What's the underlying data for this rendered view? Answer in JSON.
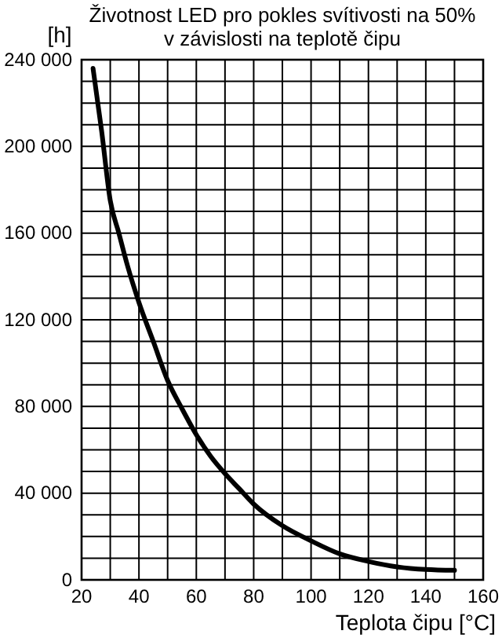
{
  "chart_data": {
    "type": "line",
    "title": "Životnost LED pro pokles svítivosti na 50%",
    "subtitle": "v závislosti na teplotě čipu",
    "ylabel": "[h]",
    "xlabel": "Teplota čipu  [°C]",
    "series": [
      {
        "color": "#000000",
        "x": [
          24,
          27,
          30,
          33,
          36,
          40,
          45,
          50,
          55,
          60,
          65,
          70,
          75,
          80,
          90,
          100,
          110,
          120,
          130,
          140,
          150
        ],
        "values": [
          236000,
          207000,
          175000,
          160000,
          145000,
          128000,
          110000,
          92000,
          79000,
          67000,
          57000,
          49000,
          42000,
          35000,
          25000,
          18000,
          12000,
          8500,
          6000,
          4800,
          4400
        ]
      }
    ],
    "xlim": [
      20,
      160
    ],
    "ylim": [
      0,
      240000
    ],
    "xticks": [
      20,
      {
        "value": 30,
        "label": null
      },
      40,
      {
        "value": 50,
        "label": null
      },
      60,
      {
        "value": 70,
        "label": null
      },
      80,
      {
        "value": 90,
        "label": null
      },
      100,
      {
        "value": 110,
        "label": null
      },
      120,
      {
        "value": 130,
        "label": null
      },
      140,
      {
        "value": 150,
        "label": null
      },
      160
    ],
    "yticks": [
      {
        "value": 0,
        "label": "0"
      },
      {
        "value": 10000,
        "label": null
      },
      {
        "value": 20000,
        "label": null
      },
      {
        "value": 30000,
        "label": null
      },
      {
        "value": 40000,
        "label": "40 000"
      },
      {
        "value": 50000,
        "label": null
      },
      {
        "value": 60000,
        "label": null
      },
      {
        "value": 70000,
        "label": null
      },
      {
        "value": 80000,
        "label": "80 000"
      },
      {
        "value": 90000,
        "label": null
      },
      {
        "value": 100000,
        "label": null
      },
      {
        "value": 110000,
        "label": null
      },
      {
        "value": 120000,
        "label": "120 000"
      },
      {
        "value": 130000,
        "label": null
      },
      {
        "value": 140000,
        "label": null
      },
      {
        "value": 150000,
        "label": null
      },
      {
        "value": 160000,
        "label": "160 000"
      },
      {
        "value": 170000,
        "label": null
      },
      {
        "value": 180000,
        "label": null
      },
      {
        "value": 190000,
        "label": null
      },
      {
        "value": 200000,
        "label": "200 000"
      },
      {
        "value": 210000,
        "label": null
      },
      {
        "value": 220000,
        "label": null
      },
      {
        "value": 230000,
        "label": null
      },
      {
        "value": 240000,
        "label": "240 000"
      }
    ],
    "grid": true,
    "marker": "none",
    "line_style": "solid"
  }
}
